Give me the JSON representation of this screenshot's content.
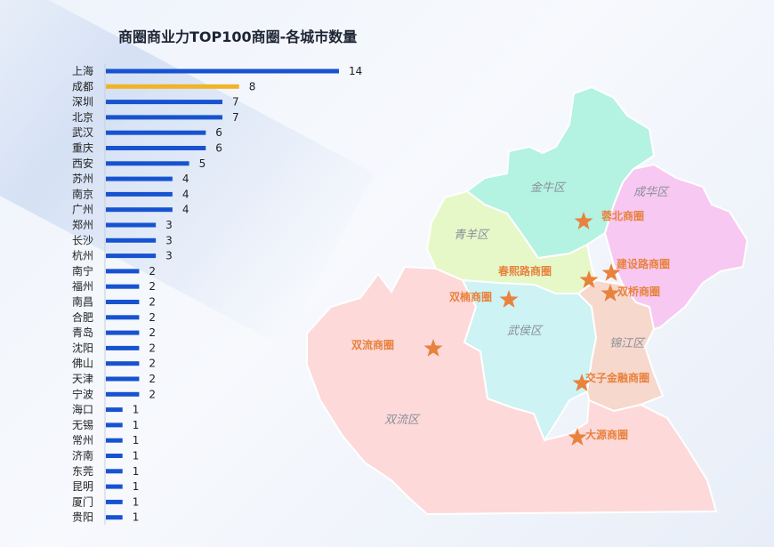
{
  "title": "商圈商业力TOP100商圈-各城市数量",
  "chart_data": {
    "type": "bar",
    "orientation": "horizontal",
    "title": "商圈商业力TOP100商圈-各城市数量",
    "categories": [
      "上海",
      "成都",
      "深圳",
      "北京",
      "武汉",
      "重庆",
      "西安",
      "苏州",
      "南京",
      "广州",
      "郑州",
      "长沙",
      "杭州",
      "南宁",
      "福州",
      "南昌",
      "合肥",
      "青岛",
      "沈阳",
      "佛山",
      "天津",
      "宁波",
      "海口",
      "无锡",
      "常州",
      "济南",
      "东莞",
      "昆明",
      "厦门",
      "贵阳"
    ],
    "values": [
      14,
      8,
      7,
      7,
      6,
      6,
      5,
      4,
      4,
      4,
      3,
      3,
      3,
      2,
      2,
      2,
      2,
      2,
      2,
      2,
      2,
      2,
      1,
      1,
      1,
      1,
      1,
      1,
      1,
      1
    ],
    "highlight_category": "成都",
    "colors": {
      "default": "#1753d0",
      "highlight": "#f0b429"
    },
    "xlim": [
      0,
      14
    ],
    "grid": false,
    "legend": "none"
  },
  "map": {
    "districts": [
      {
        "id": "jinniu",
        "name": "金牛区",
        "color": "#b4f2e2"
      },
      {
        "id": "chenghua",
        "name": "成华区",
        "color": "#f7c8f2"
      },
      {
        "id": "qingyang",
        "name": "青羊区",
        "color": "#e6f8c8"
      },
      {
        "id": "wuhou",
        "name": "武侯区",
        "color": "#cdf3f4"
      },
      {
        "id": "jinjiang",
        "name": "锦江区",
        "color": "#f7d8cd"
      },
      {
        "id": "shuangliu",
        "name": "双流区",
        "color": "#fdd9da"
      }
    ],
    "circles": [
      "蓉北商圈",
      "春熙路商圈",
      "建设路商圈",
      "双桥商圈",
      "双楠商圈",
      "双流商圈",
      "交子金融商圈",
      "大源商圈"
    ],
    "marker_color": "#e8823d"
  }
}
